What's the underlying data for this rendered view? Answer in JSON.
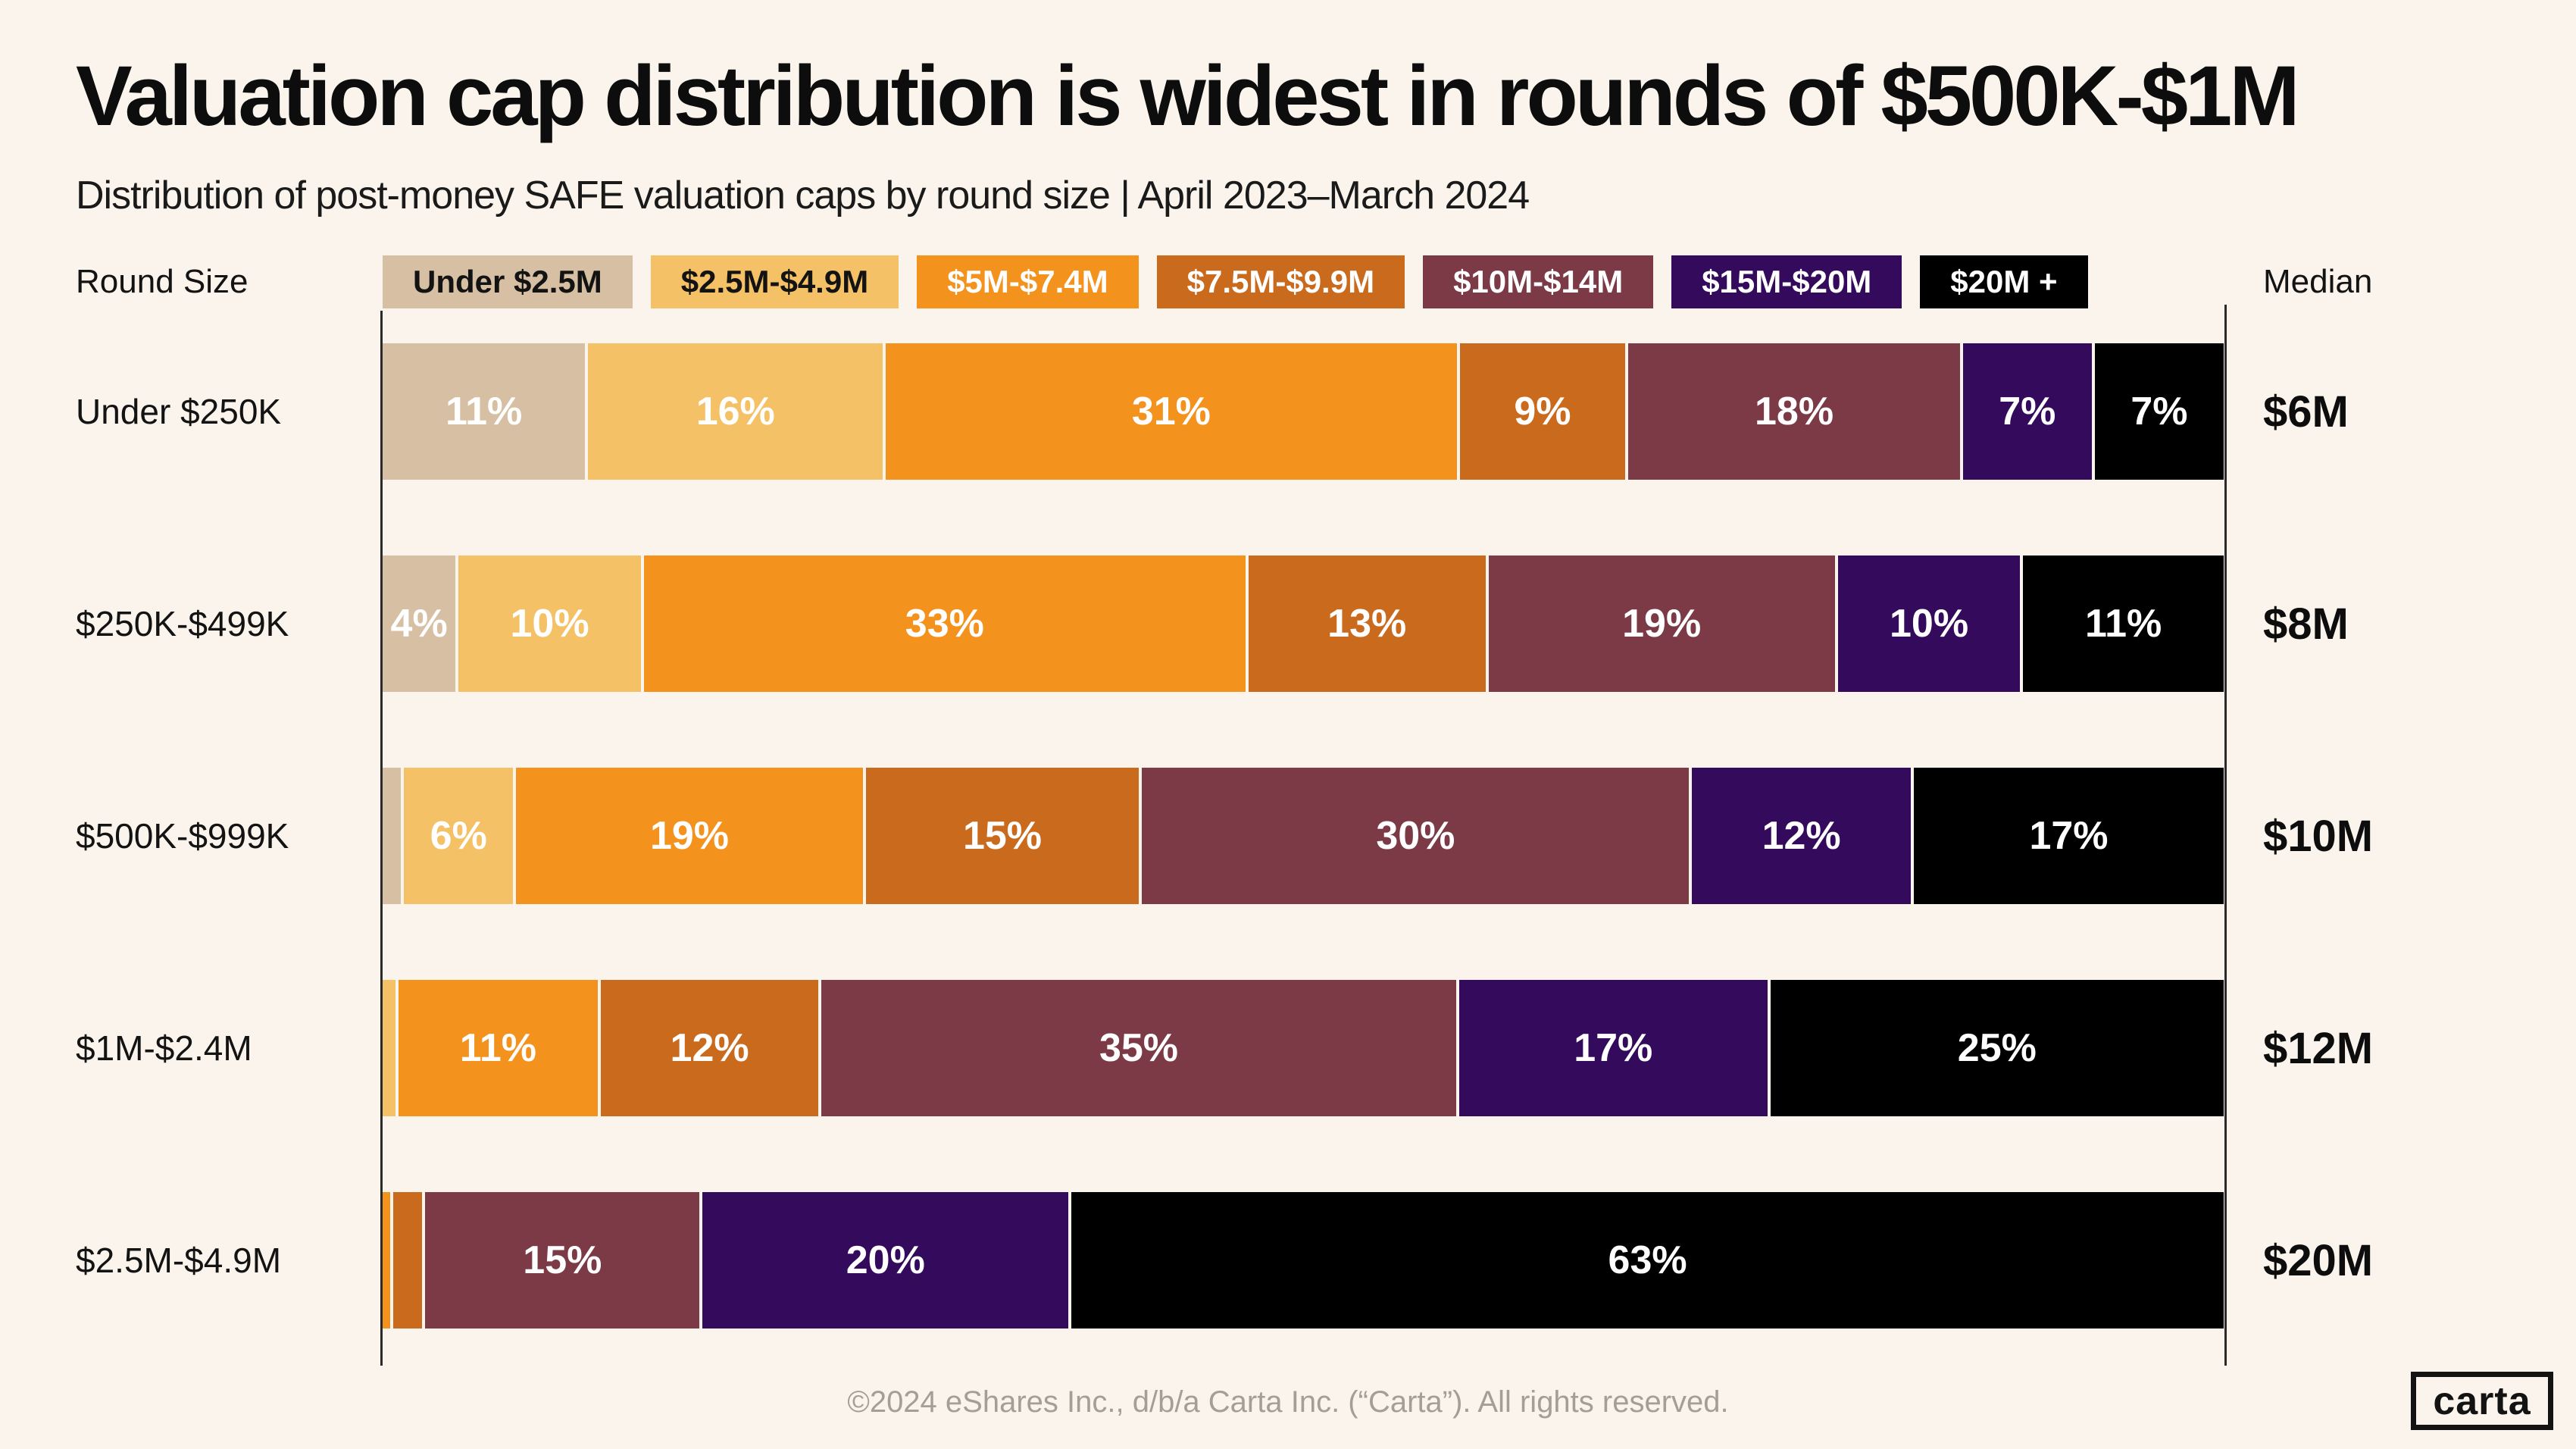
{
  "title": "Valuation cap distribution is widest in rounds of $500K-$1M",
  "subtitle": "Distribution of post-money SAFE valuation caps by round size | April 2023–March 2024",
  "axis_headers": {
    "left": "Round Size",
    "right": "Median"
  },
  "colors": {
    "background": "#faf4ec",
    "axis_line": "#2a2a2a",
    "separator": "#ffffff",
    "title_text": "#0d0d0d",
    "footer_text": "#a49e95"
  },
  "legend": [
    {
      "label": "Under $2.5M",
      "color": "#d6bfa2",
      "text_color": "#131313"
    },
    {
      "label": "$2.5M-$4.9M",
      "color": "#f4c166",
      "text_color": "#131313"
    },
    {
      "label": "$5M-$7.4M",
      "color": "#f3921d",
      "text_color": "#ffffff"
    },
    {
      "label": "$7.5M-$9.9M",
      "color": "#ca6a1d",
      "text_color": "#ffffff"
    },
    {
      "label": "$10M-$14M",
      "color": "#7b3a46",
      "text_color": "#ffffff"
    },
    {
      "label": "$15M-$20M",
      "color": "#330a5c",
      "text_color": "#ffffff"
    },
    {
      "label": "$20M +",
      "color": "#000000",
      "text_color": "#ffffff"
    }
  ],
  "chart_data": {
    "type": "bar",
    "orientation": "horizontal",
    "stacked": true,
    "unit": "percent of rounds",
    "xlim": [
      0,
      100
    ],
    "categories": [
      "Under $250K",
      "$250K-$499K",
      "$500K-$999K",
      "$1M-$2.4M",
      "$2.5M-$4.9M"
    ],
    "series_names": [
      "Under $2.5M",
      "$2.5M-$4.9M",
      "$5M-$7.4M",
      "$7.5M-$9.9M",
      "$10M-$14M",
      "$15M-$20M",
      "$20M +"
    ],
    "rows": [
      {
        "category": "Under $250K",
        "median": "$6M",
        "segments": [
          {
            "series": "Under $2.5M",
            "value": 11,
            "label": "11%"
          },
          {
            "series": "$2.5M-$4.9M",
            "value": 16,
            "label": "16%"
          },
          {
            "series": "$5M-$7.4M",
            "value": 31,
            "label": "31%"
          },
          {
            "series": "$7.5M-$9.9M",
            "value": 9,
            "label": "9%"
          },
          {
            "series": "$10M-$14M",
            "value": 18,
            "label": "18%"
          },
          {
            "series": "$15M-$20M",
            "value": 7,
            "label": "7%"
          },
          {
            "series": "$20M +",
            "value": 7,
            "label": "7%"
          }
        ]
      },
      {
        "category": "$250K-$499K",
        "median": "$8M",
        "segments": [
          {
            "series": "Under $2.5M",
            "value": 4,
            "label": "4%"
          },
          {
            "series": "$2.5M-$4.9M",
            "value": 10,
            "label": "10%"
          },
          {
            "series": "$5M-$7.4M",
            "value": 33,
            "label": "33%"
          },
          {
            "series": "$7.5M-$9.9M",
            "value": 13,
            "label": "13%"
          },
          {
            "series": "$10M-$14M",
            "value": 19,
            "label": "19%"
          },
          {
            "series": "$15M-$20M",
            "value": 10,
            "label": "10%"
          },
          {
            "series": "$20M +",
            "value": 11,
            "label": "11%"
          }
        ]
      },
      {
        "category": "$500K-$999K",
        "median": "$10M",
        "segments": [
          {
            "series": "Under $2.5M",
            "value": 1,
            "label": ""
          },
          {
            "series": "$2.5M-$4.9M",
            "value": 6,
            "label": "6%"
          },
          {
            "series": "$5M-$7.4M",
            "value": 19,
            "label": "19%"
          },
          {
            "series": "$7.5M-$9.9M",
            "value": 15,
            "label": "15%"
          },
          {
            "series": "$10M-$14M",
            "value": 30,
            "label": "30%"
          },
          {
            "series": "$15M-$20M",
            "value": 12,
            "label": "12%"
          },
          {
            "series": "$20M +",
            "value": 17,
            "label": "17%"
          }
        ]
      },
      {
        "category": "$1M-$2.4M",
        "median": "$12M",
        "segments": [
          {
            "series": "$2.5M-$4.9M",
            "value": 0.7,
            "label": ""
          },
          {
            "series": "$5M-$7.4M",
            "value": 11,
            "label": "11%"
          },
          {
            "series": "$7.5M-$9.9M",
            "value": 12,
            "label": "12%"
          },
          {
            "series": "$10M-$14M",
            "value": 35,
            "label": "35%"
          },
          {
            "series": "$15M-$20M",
            "value": 17,
            "label": "17%"
          },
          {
            "series": "$20M +",
            "value": 25,
            "label": "25%"
          }
        ]
      },
      {
        "category": "$2.5M-$4.9M",
        "median": "$20M",
        "segments": [
          {
            "series": "$5M-$7.4M",
            "value": 0.4,
            "label": ""
          },
          {
            "series": "$7.5M-$9.9M",
            "value": 1.6,
            "label": ""
          },
          {
            "series": "$10M-$14M",
            "value": 15,
            "label": "15%"
          },
          {
            "series": "$15M-$20M",
            "value": 20,
            "label": "20%"
          },
          {
            "series": "$20M +",
            "value": 63,
            "label": "63%"
          }
        ]
      }
    ]
  },
  "footer": {
    "copyright": "©2024 eShares Inc., d/b/a Carta Inc. (“Carta”). All rights reserved.",
    "logo_text": "carta"
  }
}
